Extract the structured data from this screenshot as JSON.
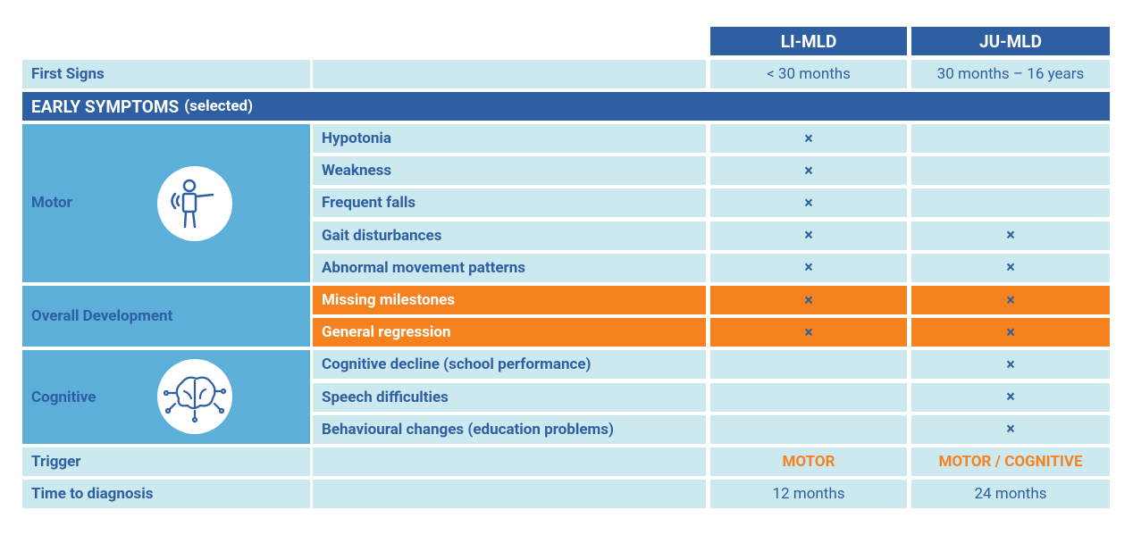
{
  "header": {
    "columns": [
      "LI-MLD",
      "JU-MLD"
    ]
  },
  "first_signs": {
    "label": "First Signs",
    "values": [
      "< 30 months",
      "30 months – 16 years"
    ]
  },
  "section": {
    "title": "EARLY SYMPTOMS",
    "note": "(selected)"
  },
  "groups": [
    {
      "label": "Motor",
      "highlight": false,
      "rows": [
        {
          "label": "Hypotonia",
          "li_mld": "×"
        },
        {
          "label": "Weakness",
          "li_mld": "×"
        },
        {
          "label": "Frequent falls",
          "li_mld": "×"
        },
        {
          "label": "Gait disturbances",
          "li_mld": "×",
          "ju_mld": "×"
        },
        {
          "label": "Abnormal movement patterns",
          "li_mld": "×",
          "ju_mld": "×"
        }
      ]
    },
    {
      "label": "Overall Development",
      "highlight": true,
      "rows": [
        {
          "label": "Missing milestones",
          "li_mld": "×",
          "ju_mld": "×"
        },
        {
          "label": "General regression",
          "li_mld": "×",
          "ju_mld": "×"
        }
      ]
    },
    {
      "label": "Cognitive",
      "highlight": false,
      "rows": [
        {
          "label": "Cognitive decline (school performance)",
          "ju_mld": "×"
        },
        {
          "label": "Speech difficulties",
          "ju_mld": "×"
        },
        {
          "label": "Behavioural changes (education problems)",
          "ju_mld": "×"
        }
      ]
    }
  ],
  "trigger": {
    "label": "Trigger",
    "values": [
      "MOTOR",
      "MOTOR / COGNITIVE"
    ]
  },
  "time_to_diagnosis": {
    "label": "Time to diagnosis",
    "values": [
      "12 months",
      "24 months"
    ]
  }
}
